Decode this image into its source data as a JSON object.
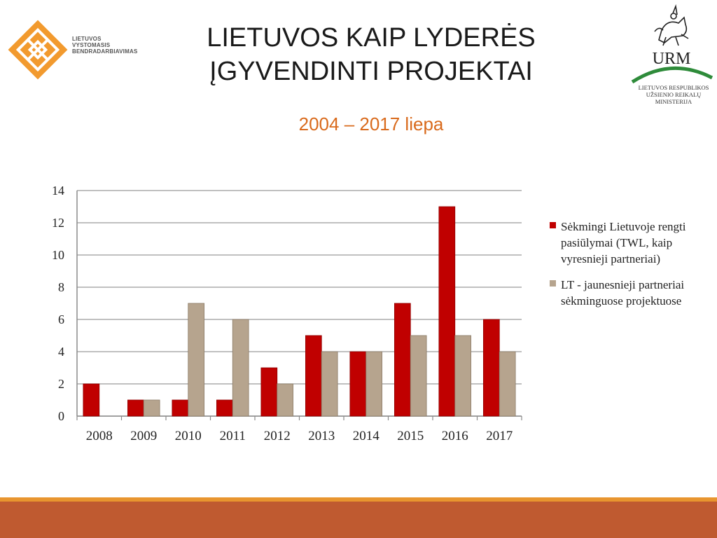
{
  "header": {
    "title_line1": "LIETUVOS KAIP LYDERĖS",
    "title_line2": "ĮGYVENDINTI PROJEKTAI",
    "subtitle": "2004 – 2017 liepa"
  },
  "logos": {
    "left_lines": [
      "LIETUVOS",
      "VYSTOMASIS",
      "BENDRADARBIAVIMAS"
    ],
    "right_abbr": "URM",
    "right_lines": [
      "LIETUVOS RESPUBLIKOS",
      "UŽSIENIO REIKALŲ",
      "MINISTERIJA"
    ]
  },
  "colors": {
    "series1": "#c00000",
    "series2": "#b6a48e",
    "accent_orange": "#d96a1c",
    "band": "#bf5a30",
    "band_top": "#e8952f",
    "urm_green": "#2e8b3a"
  },
  "chart_data": {
    "type": "bar",
    "categories": [
      "2008",
      "2009",
      "2010",
      "2011",
      "2012",
      "2013",
      "2014",
      "2015",
      "2016",
      "2017"
    ],
    "series": [
      {
        "name": "Sėkmingi Lietuvoje rengti pasiūlymai (TWL, kaip vyresnieji partneriai)",
        "values": [
          2,
          1,
          1,
          1,
          3,
          5,
          4,
          7,
          13,
          6
        ]
      },
      {
        "name": "LT - jaunesnieji partneriai sėkminguose projektuose",
        "values": [
          0,
          1,
          7,
          6,
          2,
          4,
          4,
          5,
          5,
          4
        ]
      }
    ],
    "ylim": [
      0,
      14
    ],
    "yticks": [
      0,
      2,
      4,
      6,
      8,
      10,
      12,
      14
    ],
    "grid": true,
    "legend_position": "right"
  }
}
